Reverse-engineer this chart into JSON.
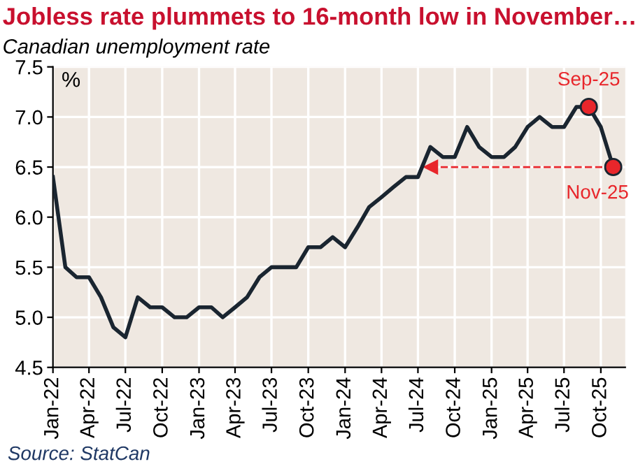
{
  "chart_data": {
    "type": "line",
    "title": "Jobless rate plummets to 16-month low in November…",
    "subtitle": "Canadian unemployment rate",
    "ylabel": "%",
    "x": [
      "2022-01",
      "2022-02",
      "2022-03",
      "2022-04",
      "2022-05",
      "2022-06",
      "2022-07",
      "2022-08",
      "2022-09",
      "2022-10",
      "2022-11",
      "2022-12",
      "2023-01",
      "2023-02",
      "2023-03",
      "2023-04",
      "2023-05",
      "2023-06",
      "2023-07",
      "2023-08",
      "2023-09",
      "2023-10",
      "2023-11",
      "2023-12",
      "2024-01",
      "2024-02",
      "2024-03",
      "2024-04",
      "2024-05",
      "2024-06",
      "2024-07",
      "2024-08",
      "2024-09",
      "2024-10",
      "2024-11",
      "2024-12",
      "2025-01",
      "2025-02",
      "2025-03",
      "2025-04",
      "2025-05",
      "2025-06",
      "2025-07",
      "2025-08",
      "2025-09",
      "2025-10",
      "2025-11"
    ],
    "series": [
      {
        "color": "#1a2530",
        "values": [
          6.4,
          5.5,
          5.4,
          5.4,
          5.2,
          4.9,
          4.8,
          5.2,
          5.1,
          5.1,
          5.0,
          5.0,
          5.1,
          5.1,
          5.0,
          5.1,
          5.2,
          5.4,
          5.5,
          5.5,
          5.5,
          5.7,
          5.7,
          5.8,
          5.7,
          5.9,
          6.1,
          6.2,
          6.3,
          6.4,
          6.4,
          6.7,
          6.6,
          6.6,
          6.9,
          6.7,
          6.6,
          6.6,
          6.7,
          6.9,
          7.0,
          6.9,
          6.9,
          7.1,
          7.1,
          6.9,
          6.5
        ]
      },
      {
        "type": "line",
        "color": "#e8262b",
        "line_style": "dashed",
        "marker": "triangle",
        "x": [
          "2024-08",
          "2025-11"
        ],
        "values": [
          6.5,
          6.5
        ]
      },
      {
        "type": "scatter",
        "color": "#e8262b",
        "marker": "circle",
        "x": [
          "2025-09",
          "2025-11"
        ],
        "values": [
          7.1,
          6.5
        ]
      }
    ],
    "annotations": [
      {
        "text": "Sep-25",
        "x": "2025-09",
        "y": 7.1
      },
      {
        "text": "Nov-25",
        "x": "2025-11",
        "y": 6.5
      },
      "Source: StatCan"
    ],
    "xlim": [
      "2022-01",
      "2025-12"
    ],
    "xticks": [
      {
        "value": "2022-01",
        "label": "Jan-22"
      },
      {
        "value": "2022-04",
        "label": "Apr-22"
      },
      {
        "value": "2022-07",
        "label": "Jul-22"
      },
      {
        "value": "2022-10",
        "label": "Oct-22"
      },
      {
        "value": "2023-01",
        "label": "Jan-23"
      },
      {
        "value": "2023-04",
        "label": "Apr-23"
      },
      {
        "value": "2023-07",
        "label": "Jul-23"
      },
      {
        "value": "2023-10",
        "label": "Oct-23"
      },
      {
        "value": "2024-01",
        "label": "Jan-24"
      },
      {
        "value": "2024-04",
        "label": "Apr-24"
      },
      {
        "value": "2024-07",
        "label": "Jul-24"
      },
      {
        "value": "2024-10",
        "label": "Oct-24"
      },
      {
        "value": "2025-01",
        "label": "Jan-25"
      },
      {
        "value": "2025-04",
        "label": "Apr-25"
      },
      {
        "value": "2025-07",
        "label": "Jul-25"
      },
      {
        "value": "2025-10",
        "label": "Oct-25"
      }
    ],
    "ylim": [
      4.5,
      7.5
    ],
    "yticks": [
      {
        "value": 4.5,
        "label": "4.5"
      },
      {
        "value": 5.0,
        "label": "5.0"
      },
      {
        "value": 5.5,
        "label": "5.5"
      },
      {
        "value": 6.0,
        "label": "6.0"
      },
      {
        "value": 6.5,
        "label": "6.5"
      },
      {
        "value": 7.0,
        "label": "7.0"
      },
      {
        "value": 7.5,
        "label": "7.5"
      }
    ],
    "grid": true,
    "legend": false,
    "marker": "none",
    "line_style": "solid"
  }
}
